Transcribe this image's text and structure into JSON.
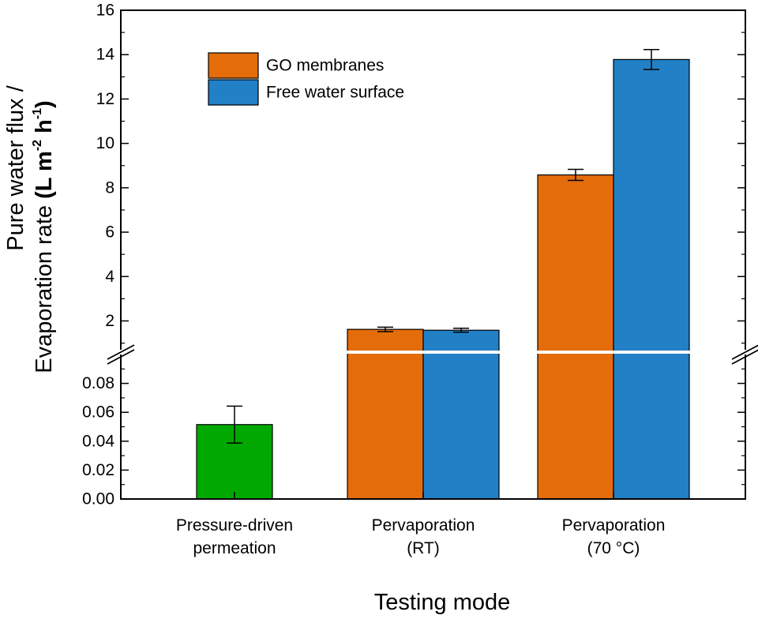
{
  "chart_data": {
    "type": "bar",
    "axis_break": true,
    "xlabel": "Testing mode",
    "ylabel_line1": "Pure water flux /",
    "ylabel_line2_prefix": "Evaporation rate ",
    "ylabel_units": {
      "open": "(L m",
      "exp1": "-2",
      "mid": " h",
      "exp2": "-1",
      "close": ")"
    },
    "upper_axis": {
      "ylim": [
        0.7,
        16
      ],
      "ticks": [
        2,
        4,
        6,
        8,
        10,
        12,
        14,
        16
      ],
      "tick_labels": [
        "2",
        "4",
        "6",
        "8",
        "10",
        "12",
        "14",
        "16"
      ]
    },
    "lower_axis": {
      "ylim": [
        0,
        0.1
      ],
      "ticks": [
        0,
        0.02,
        0.04,
        0.06,
        0.08
      ],
      "tick_labels": [
        "0.00",
        "0.02",
        "0.04",
        "0.06",
        "0.08"
      ]
    },
    "categories": [
      {
        "line1": "Pressure-driven",
        "line2": "permeation"
      },
      {
        "line1": "Pervaporation",
        "line2": "(RT)"
      },
      {
        "line1": "Pervaporation",
        "line2": "(70 °C)"
      }
    ],
    "series": [
      {
        "name": "Pressure-driven permeation",
        "color": "#00A800",
        "in_legend": false,
        "points": [
          {
            "category": 0,
            "value": 0.0515,
            "error": 0.0128
          }
        ]
      },
      {
        "name": "GO membranes",
        "color": "#E46C0A",
        "in_legend": true,
        "points": [
          {
            "category": 1,
            "value": 1.62,
            "error": 0.1
          },
          {
            "category": 2,
            "value": 8.58,
            "error": 0.25
          }
        ]
      },
      {
        "name": "Free water surface",
        "color": "#2180C6",
        "in_legend": true,
        "points": [
          {
            "category": 1,
            "value": 1.58,
            "error": 0.09
          },
          {
            "category": 2,
            "value": 13.78,
            "error": 0.45
          }
        ]
      }
    ],
    "legend": {
      "position": "top-left",
      "entries": [
        "GO membranes",
        "Free water surface"
      ]
    }
  }
}
